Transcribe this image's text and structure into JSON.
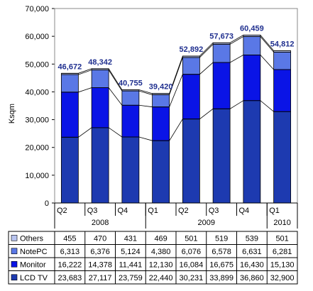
{
  "chart_data": {
    "type": "bar",
    "stacked": true,
    "ylabel": "Ksqm",
    "ylim": [
      0,
      70000
    ],
    "yticks": [
      "0",
      "10,000",
      "20,000",
      "30,000",
      "40,000",
      "50,000",
      "60,000",
      "70,000"
    ],
    "categories": [
      "Q2",
      "Q3",
      "Q4",
      "Q1",
      "Q2",
      "Q3",
      "Q4",
      "Q1"
    ],
    "years": [
      {
        "label": "2008",
        "from": 0,
        "to": 2
      },
      {
        "label": "2009",
        "from": 3,
        "to": 6
      },
      {
        "label": "2010",
        "from": 7,
        "to": 7
      }
    ],
    "totals": [
      46672,
      48342,
      40755,
      39420,
      52892,
      57673,
      60459,
      54812
    ],
    "total_labels": [
      "46,672",
      "48,342",
      "40,755",
      "39,420",
      "52,892",
      "57,673",
      "60,459",
      "54,812"
    ],
    "total_line": true,
    "grid": false,
    "series": [
      {
        "name": "LCD TV",
        "color": "#1d3ab0",
        "values": [
          23683,
          27117,
          23759,
          22440,
          30231,
          33899,
          36860,
          32900
        ],
        "labels": [
          "23,683",
          "27,117",
          "23,759",
          "22,440",
          "30,231",
          "33,899",
          "36,860",
          "32,900"
        ]
      },
      {
        "name": "Monitor",
        "color": "#0a14e6",
        "values": [
          16222,
          14378,
          11441,
          12130,
          16084,
          16675,
          16430,
          15130
        ],
        "labels": [
          "16,222",
          "14,378",
          "11,441",
          "12,130",
          "16,084",
          "16,675",
          "16,430",
          "15,130"
        ]
      },
      {
        "name": "NotePC",
        "color": "#5a78e6",
        "values": [
          6313,
          6376,
          5124,
          4380,
          6076,
          6578,
          6631,
          6281
        ],
        "labels": [
          "6,313",
          "6,376",
          "5,124",
          "4,380",
          "6,076",
          "6,578",
          "6,631",
          "6,281"
        ]
      },
      {
        "name": "Others",
        "color": "#b8c4f0",
        "values": [
          455,
          470,
          431,
          469,
          501,
          519,
          539,
          501
        ],
        "labels": [
          "455",
          "470",
          "431",
          "469",
          "501",
          "519",
          "539",
          "501"
        ]
      }
    ],
    "colors": {
      "total_label": "#1f2f8f",
      "axis": "#000000",
      "border": "#888888"
    }
  }
}
